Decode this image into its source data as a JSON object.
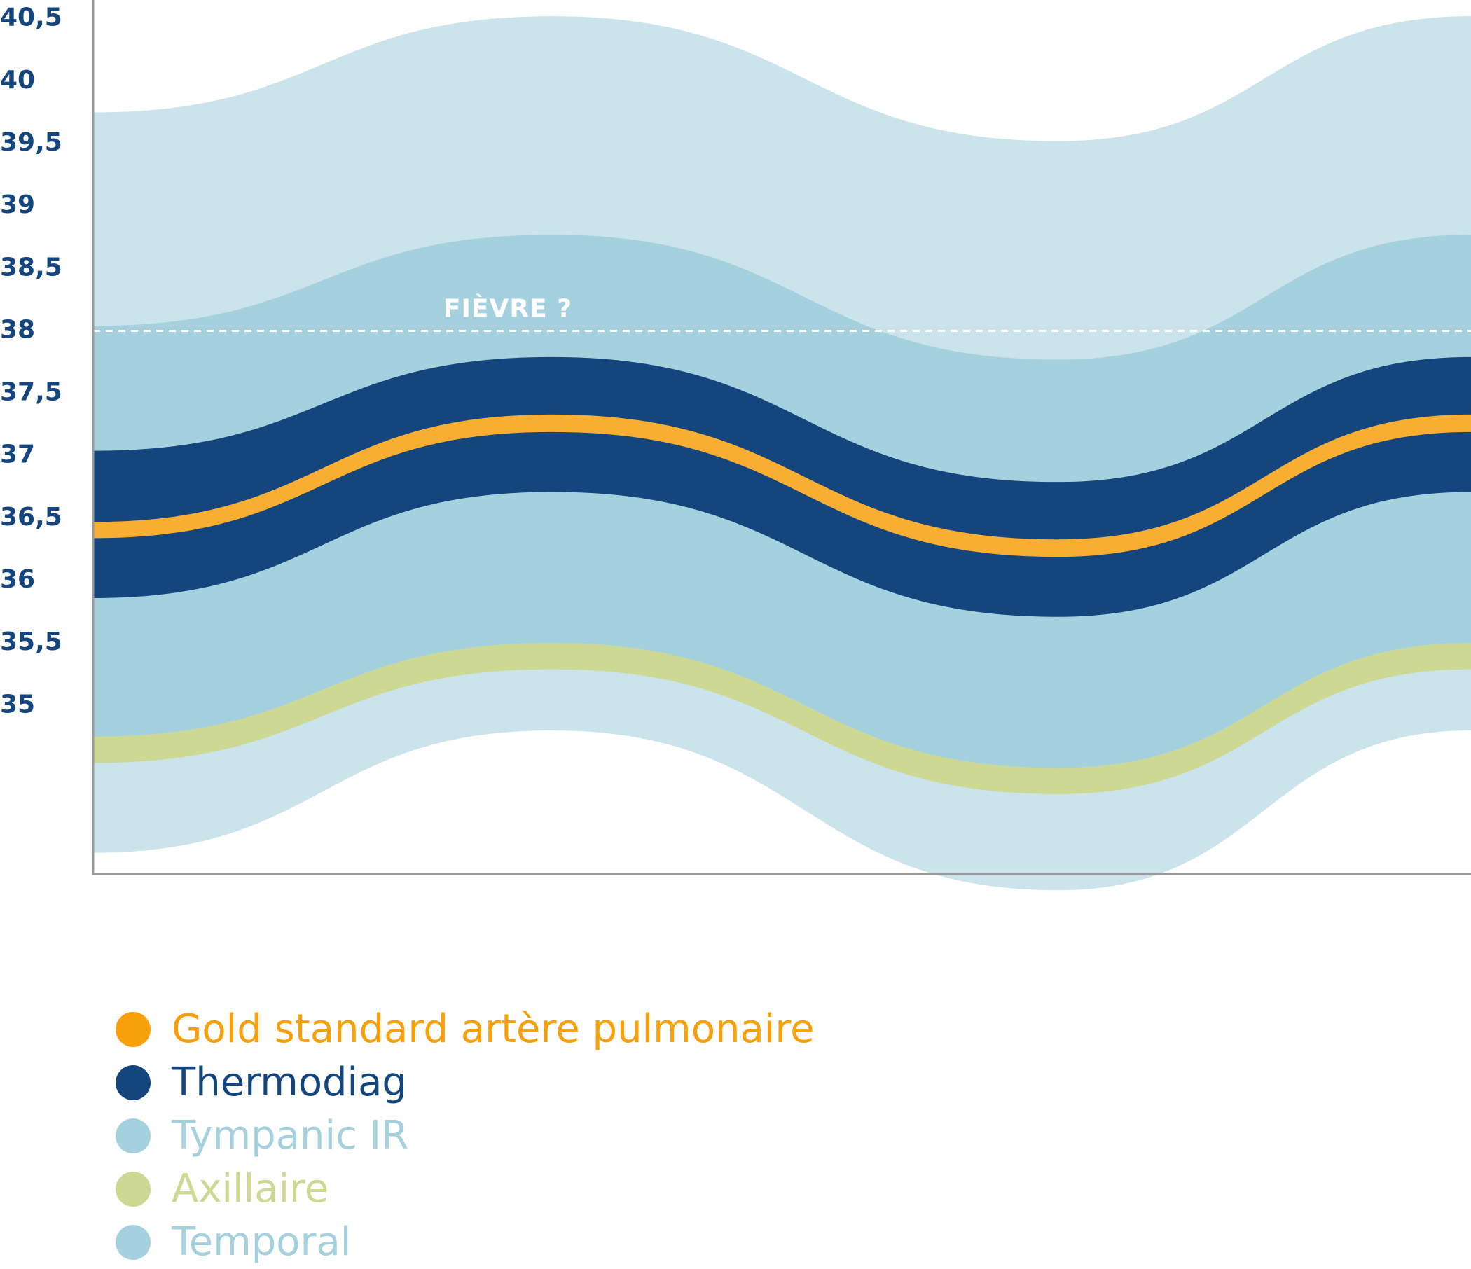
{
  "chart_data": {
    "type": "area",
    "title": "",
    "xlabel": "",
    "ylabel": "",
    "ylim": [
      33.65,
      40.65
    ],
    "ytick_labels": [
      "40,5",
      "40",
      "39,5",
      "39",
      "38,5",
      "38",
      "37,5",
      "37",
      "36,5",
      "36",
      "35,5",
      "35"
    ],
    "yticks": [
      40.5,
      40,
      39.5,
      39,
      38.5,
      38,
      37.5,
      37,
      36.5,
      36,
      35.5,
      35
    ],
    "x": [
      0,
      0.333,
      0.7,
      1
    ],
    "bands": [
      {
        "name": "Temporal",
        "color": "#cbe3eb",
        "upper": [
          39.75,
          40.52,
          39.52,
          40.52
        ],
        "lower": [
          33.82,
          34.8,
          33.52,
          34.8
        ]
      },
      {
        "name": "Tympanic IR",
        "color": "#a5d1df",
        "upper": [
          38.04,
          38.77,
          37.77,
          38.77
        ],
        "lower": [
          34.75,
          35.5,
          34.5,
          35.5
        ]
      },
      {
        "name": "Axillaire",
        "color": "#cdd993",
        "upper": [
          34.75,
          35.5,
          34.5,
          35.5
        ],
        "lower": [
          34.54,
          35.29,
          34.29,
          35.29
        ]
      },
      {
        "name": "Thermodiag",
        "color": "#14457d",
        "upper": [
          37.04,
          37.79,
          36.79,
          37.79
        ],
        "lower": [
          35.86,
          36.71,
          35.71,
          36.71
        ]
      },
      {
        "name": "Gold standard artère pulmonaire",
        "color": "#f8ae33",
        "upper": [
          36.47,
          37.33,
          36.33,
          37.33
        ],
        "lower": [
          36.34,
          37.19,
          36.19,
          37.19
        ]
      }
    ],
    "reference_line": {
      "label": "FIÈVRE ?",
      "y": 38,
      "color": "#ffffff"
    },
    "grid": false,
    "legend": "bottom-left",
    "legend_entries": [
      {
        "label": "Gold standard artère pulmonaire",
        "color": "#f8a00a"
      },
      {
        "label": "Thermodiag",
        "color": "#14457d"
      },
      {
        "label": "Tympanic IR",
        "color": "#a5d1df"
      },
      {
        "label": "Axillaire",
        "color": "#cdd993"
      },
      {
        "label": "Temporal",
        "color": "#a5d1df"
      }
    ],
    "axis_color": "#9a9a9a",
    "tick_color": "#14457d"
  }
}
